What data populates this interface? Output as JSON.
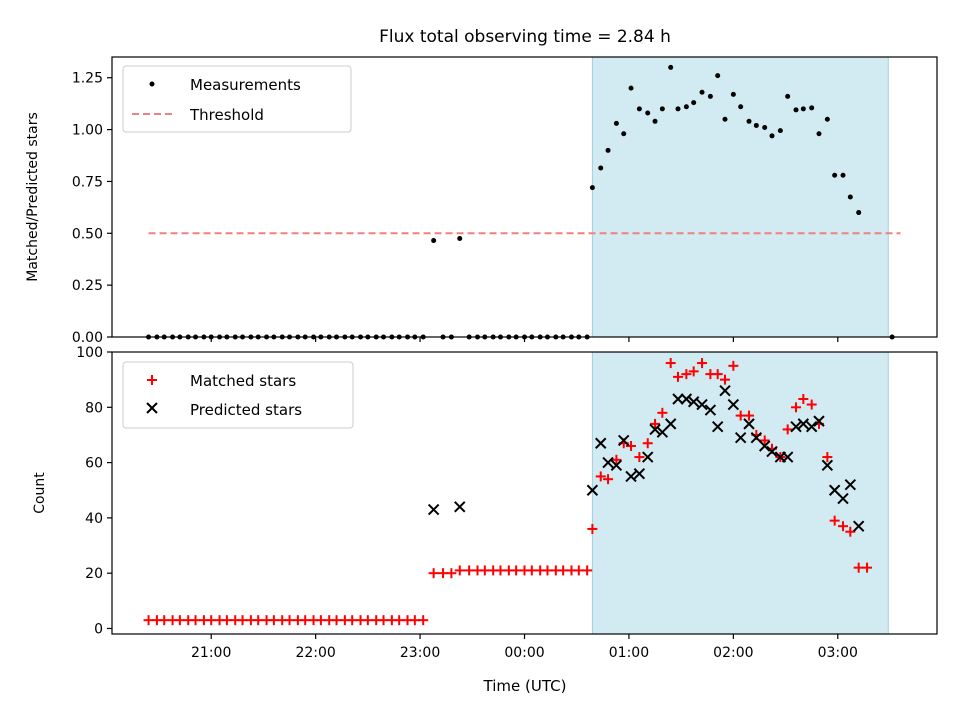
{
  "chart_data": [
    {
      "type": "scatter",
      "title": "Flux total observing time = 2.84 h",
      "xlabel": "",
      "ylabel": "Matched/Predicted stars",
      "ylim": [
        0,
        1.35
      ],
      "yticks": [
        "0.00",
        "0.25",
        "0.50",
        "0.75",
        "1.00",
        "1.25"
      ],
      "yticks_values": [
        0,
        0.25,
        0.5,
        0.75,
        1.0,
        1.25
      ],
      "x_unit": "hours from 00:00 UTC (negative = previous day)",
      "xlim": [
        -3.95,
        3.95
      ],
      "shaded_interval": [
        "00:39",
        "03:29"
      ],
      "shade_color": "#add8e6",
      "legend": {
        "position": "top-left",
        "entries": [
          "Measurements",
          "Threshold"
        ]
      },
      "threshold": {
        "name": "Threshold",
        "value": 0.5,
        "x_range": [
          -3.6,
          3.6
        ],
        "color": "#f08080"
      },
      "series": [
        {
          "name": "Measurements",
          "color": "#000000",
          "points": [
            [
              -3.6,
              0
            ],
            [
              -3.52,
              0
            ],
            [
              -3.45,
              0
            ],
            [
              -3.37,
              0
            ],
            [
              -3.3,
              0
            ],
            [
              -3.22,
              0
            ],
            [
              -3.15,
              0
            ],
            [
              -3.07,
              0
            ],
            [
              -3.0,
              0
            ],
            [
              -2.92,
              0
            ],
            [
              -2.85,
              0
            ],
            [
              -2.77,
              0
            ],
            [
              -2.7,
              0
            ],
            [
              -2.62,
              0
            ],
            [
              -2.55,
              0
            ],
            [
              -2.47,
              0
            ],
            [
              -2.4,
              0
            ],
            [
              -2.32,
              0
            ],
            [
              -2.25,
              0
            ],
            [
              -2.17,
              0
            ],
            [
              -2.1,
              0
            ],
            [
              -2.02,
              0
            ],
            [
              -1.95,
              0
            ],
            [
              -1.87,
              0
            ],
            [
              -1.8,
              0
            ],
            [
              -1.72,
              0
            ],
            [
              -1.65,
              0
            ],
            [
              -1.57,
              0
            ],
            [
              -1.5,
              0
            ],
            [
              -1.42,
              0
            ],
            [
              -1.35,
              0
            ],
            [
              -1.27,
              0
            ],
            [
              -1.2,
              0
            ],
            [
              -1.12,
              0
            ],
            [
              -1.05,
              0
            ],
            [
              -0.97,
              0
            ],
            [
              -0.87,
              0.465
            ],
            [
              -0.78,
              0
            ],
            [
              -0.7,
              0
            ],
            [
              -0.62,
              0.475
            ],
            [
              -0.53,
              0
            ],
            [
              -0.45,
              0
            ],
            [
              -0.38,
              0
            ],
            [
              -0.3,
              0
            ],
            [
              -0.23,
              0
            ],
            [
              -0.15,
              0
            ],
            [
              -0.08,
              0
            ],
            [
              0.0,
              0
            ],
            [
              0.07,
              0
            ],
            [
              0.15,
              0
            ],
            [
              0.22,
              0
            ],
            [
              0.3,
              0
            ],
            [
              0.37,
              0
            ],
            [
              0.45,
              0
            ],
            [
              0.52,
              0
            ],
            [
              0.6,
              0
            ],
            [
              0.65,
              0.72
            ],
            [
              0.73,
              0.815
            ],
            [
              0.8,
              0.9
            ],
            [
              0.88,
              1.03
            ],
            [
              0.95,
              0.98
            ],
            [
              1.02,
              1.2
            ],
            [
              1.1,
              1.1
            ],
            [
              1.18,
              1.08
            ],
            [
              1.25,
              1.04
            ],
            [
              1.32,
              1.1
            ],
            [
              1.4,
              1.3
            ],
            [
              1.47,
              1.1
            ],
            [
              1.55,
              1.11
            ],
            [
              1.62,
              1.13
            ],
            [
              1.7,
              1.18
            ],
            [
              1.78,
              1.16
            ],
            [
              1.85,
              1.26
            ],
            [
              1.92,
              1.05
            ],
            [
              2.0,
              1.17
            ],
            [
              2.07,
              1.11
            ],
            [
              2.15,
              1.04
            ],
            [
              2.22,
              1.02
            ],
            [
              2.3,
              1.01
            ],
            [
              2.37,
              0.97
            ],
            [
              2.45,
              0.995
            ],
            [
              2.52,
              1.16
            ],
            [
              2.6,
              1.095
            ],
            [
              2.67,
              1.1
            ],
            [
              2.75,
              1.105
            ],
            [
              2.82,
              0.98
            ],
            [
              2.9,
              1.05
            ],
            [
              2.97,
              0.78
            ],
            [
              3.05,
              0.78
            ],
            [
              3.12,
              0.675
            ],
            [
              3.2,
              0.6
            ],
            [
              3.52,
              0
            ]
          ]
        }
      ]
    },
    {
      "type": "scatter",
      "title": "",
      "xlabel": "Time (UTC)",
      "ylabel": "Count",
      "ylim": [
        -2,
        100
      ],
      "yticks": [
        "0",
        "20",
        "40",
        "60",
        "80",
        "100"
      ],
      "yticks_values": [
        0,
        20,
        40,
        60,
        80,
        100
      ],
      "x_unit": "hours from 00:00 UTC (negative = previous day)",
      "xlim": [
        -3.95,
        3.95
      ],
      "xticks": [
        "21:00",
        "22:00",
        "23:00",
        "00:00",
        "01:00",
        "02:00",
        "03:00"
      ],
      "xticks_values": [
        -3,
        -2,
        -1,
        0,
        1,
        2,
        3
      ],
      "shaded_interval": [
        "00:39",
        "03:29"
      ],
      "shade_color": "#add8e6",
      "legend": {
        "position": "top-left",
        "entries": [
          "Matched stars",
          "Predicted stars"
        ]
      },
      "series": [
        {
          "name": "Matched stars",
          "marker": "+",
          "color": "#ff0000",
          "points": [
            [
              -3.6,
              3
            ],
            [
              -3.52,
              3
            ],
            [
              -3.45,
              3
            ],
            [
              -3.37,
              3
            ],
            [
              -3.3,
              3
            ],
            [
              -3.22,
              3
            ],
            [
              -3.15,
              3
            ],
            [
              -3.07,
              3
            ],
            [
              -3.0,
              3
            ],
            [
              -2.92,
              3
            ],
            [
              -2.85,
              3
            ],
            [
              -2.77,
              3
            ],
            [
              -2.7,
              3
            ],
            [
              -2.62,
              3
            ],
            [
              -2.55,
              3
            ],
            [
              -2.47,
              3
            ],
            [
              -2.4,
              3
            ],
            [
              -2.32,
              3
            ],
            [
              -2.25,
              3
            ],
            [
              -2.17,
              3
            ],
            [
              -2.1,
              3
            ],
            [
              -2.02,
              3
            ],
            [
              -1.95,
              3
            ],
            [
              -1.87,
              3
            ],
            [
              -1.8,
              3
            ],
            [
              -1.72,
              3
            ],
            [
              -1.65,
              3
            ],
            [
              -1.57,
              3
            ],
            [
              -1.5,
              3
            ],
            [
              -1.42,
              3
            ],
            [
              -1.35,
              3
            ],
            [
              -1.27,
              3
            ],
            [
              -1.2,
              3
            ],
            [
              -1.12,
              3
            ],
            [
              -1.05,
              3
            ],
            [
              -0.97,
              3
            ],
            [
              -0.87,
              20
            ],
            [
              -0.78,
              20
            ],
            [
              -0.7,
              20
            ],
            [
              -0.62,
              21
            ],
            [
              -0.53,
              21
            ],
            [
              -0.45,
              21
            ],
            [
              -0.38,
              21
            ],
            [
              -0.3,
              21
            ],
            [
              -0.23,
              21
            ],
            [
              -0.15,
              21
            ],
            [
              -0.08,
              21
            ],
            [
              0.0,
              21
            ],
            [
              0.07,
              21
            ],
            [
              0.15,
              21
            ],
            [
              0.22,
              21
            ],
            [
              0.3,
              21
            ],
            [
              0.37,
              21
            ],
            [
              0.45,
              21
            ],
            [
              0.52,
              21
            ],
            [
              0.6,
              21
            ],
            [
              0.65,
              36
            ],
            [
              0.73,
              55
            ],
            [
              0.8,
              54
            ],
            [
              0.88,
              61
            ],
            [
              0.95,
              67
            ],
            [
              1.02,
              66
            ],
            [
              1.1,
              62
            ],
            [
              1.18,
              67
            ],
            [
              1.25,
              74
            ],
            [
              1.32,
              78
            ],
            [
              1.4,
              96
            ],
            [
              1.47,
              91
            ],
            [
              1.55,
              92
            ],
            [
              1.62,
              93
            ],
            [
              1.7,
              96
            ],
            [
              1.78,
              92
            ],
            [
              1.85,
              92
            ],
            [
              1.92,
              90
            ],
            [
              2.0,
              95
            ],
            [
              2.07,
              77
            ],
            [
              2.15,
              77
            ],
            [
              2.22,
              70
            ],
            [
              2.3,
              68
            ],
            [
              2.37,
              65
            ],
            [
              2.45,
              62
            ],
            [
              2.52,
              72
            ],
            [
              2.6,
              80
            ],
            [
              2.67,
              83
            ],
            [
              2.75,
              81
            ],
            [
              2.82,
              74
            ],
            [
              2.9,
              62
            ],
            [
              2.97,
              39
            ],
            [
              3.05,
              37
            ],
            [
              3.12,
              35
            ],
            [
              3.2,
              22
            ],
            [
              3.28,
              22
            ]
          ]
        },
        {
          "name": "Predicted stars",
          "marker": "x",
          "color": "#000000",
          "points": [
            [
              -0.87,
              43
            ],
            [
              -0.62,
              44
            ],
            [
              0.65,
              50
            ],
            [
              0.73,
              67
            ],
            [
              0.8,
              60
            ],
            [
              0.88,
              59
            ],
            [
              0.95,
              68
            ],
            [
              1.02,
              55
            ],
            [
              1.1,
              56
            ],
            [
              1.18,
              62
            ],
            [
              1.25,
              72
            ],
            [
              1.32,
              71
            ],
            [
              1.4,
              74
            ],
            [
              1.47,
              83
            ],
            [
              1.55,
              83
            ],
            [
              1.62,
              82
            ],
            [
              1.7,
              81
            ],
            [
              1.78,
              79
            ],
            [
              1.85,
              73
            ],
            [
              1.92,
              86
            ],
            [
              2.0,
              81
            ],
            [
              2.07,
              69
            ],
            [
              2.15,
              74
            ],
            [
              2.22,
              69
            ],
            [
              2.3,
              66
            ],
            [
              2.37,
              64
            ],
            [
              2.45,
              62
            ],
            [
              2.52,
              62
            ],
            [
              2.6,
              73
            ],
            [
              2.67,
              74
            ],
            [
              2.75,
              73
            ],
            [
              2.82,
              75
            ],
            [
              2.9,
              59
            ],
            [
              2.97,
              50
            ],
            [
              3.05,
              47
            ],
            [
              3.12,
              52
            ],
            [
              3.2,
              37
            ]
          ]
        }
      ]
    }
  ]
}
